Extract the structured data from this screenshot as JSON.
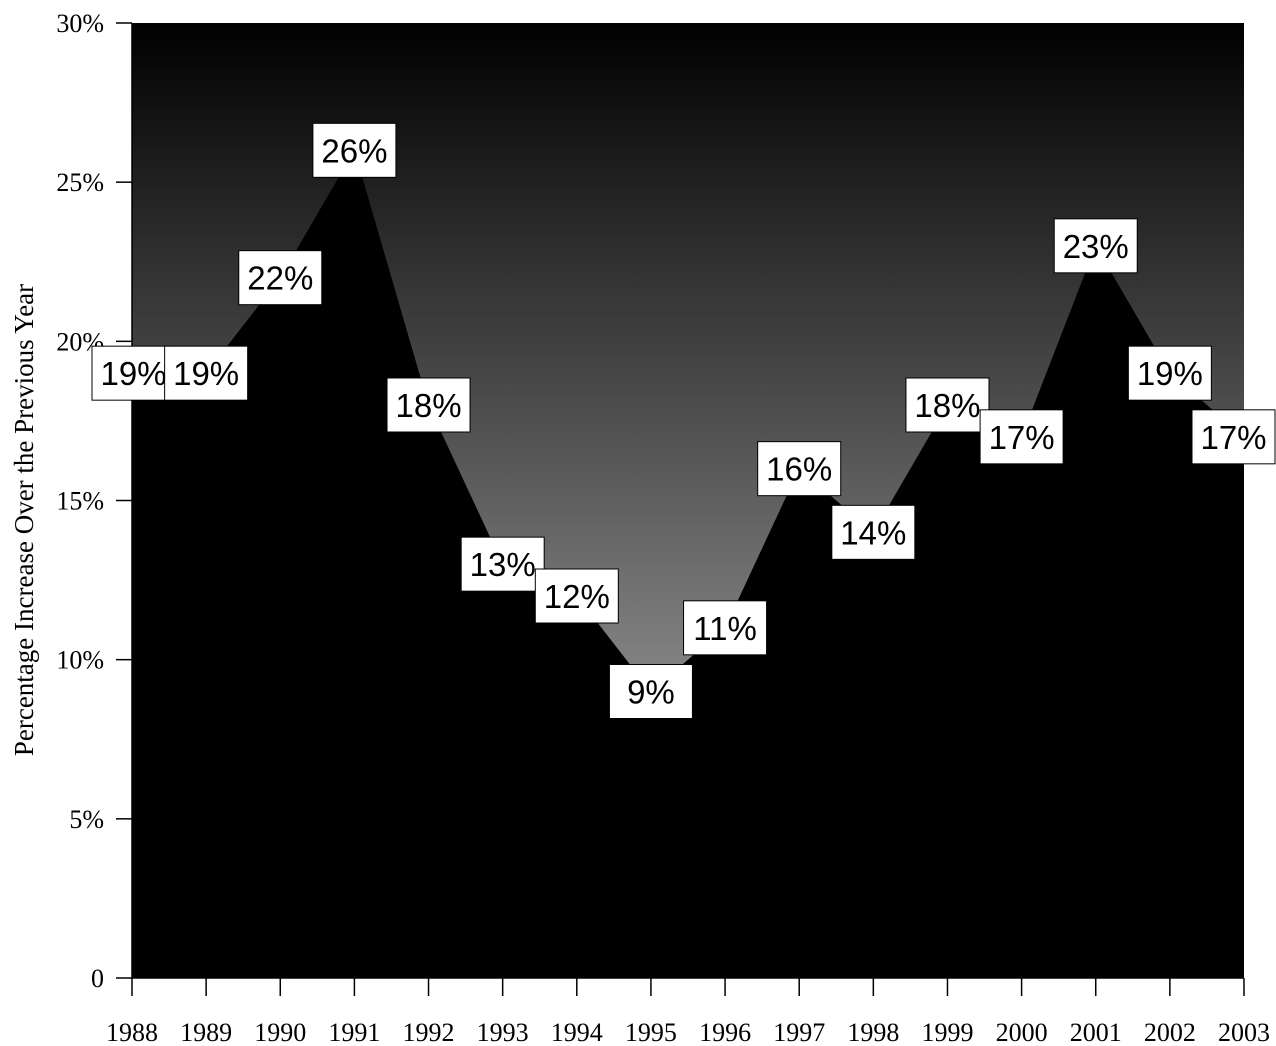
{
  "chart_data": {
    "type": "area",
    "title": "",
    "xlabel": "",
    "ylabel": "Percentage Increase Over the Previous Year",
    "categories": [
      "1988",
      "1989",
      "1990",
      "1991",
      "1992",
      "1993",
      "1994",
      "1995",
      "1996",
      "1997",
      "1998",
      "1999",
      "2000",
      "2001",
      "2002",
      "2003"
    ],
    "series": [
      {
        "values": [
          19,
          19,
          22,
          26,
          18,
          13,
          12,
          9,
          11,
          16,
          14,
          18,
          17,
          23,
          19,
          17
        ]
      }
    ],
    "data_labels": [
      "19%",
      "19%",
      "22%",
      "26%",
      "18%",
      "13%",
      "12%",
      "9%",
      "11%",
      "16%",
      "14%",
      "18%",
      "17%",
      "23%",
      "19%",
      "17%"
    ],
    "ylim": [
      0,
      30
    ],
    "yticks": [
      0,
      5,
      10,
      15,
      20,
      25,
      30
    ],
    "ytick_labels": [
      "0",
      "5%",
      "10%",
      "15%",
      "20%",
      "25%",
      "30%"
    ],
    "grid": false,
    "legend": "none",
    "colors": {
      "area_fill": "#000000",
      "plot_background_top": "#000000",
      "plot_background_bottom": "#c0c0c0",
      "label_box": "#ffffff"
    }
  }
}
